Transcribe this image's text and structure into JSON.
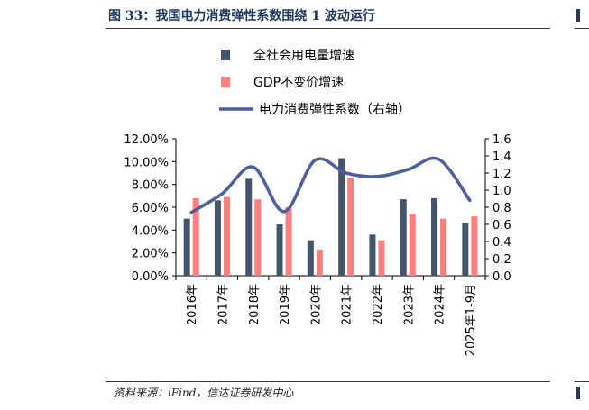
{
  "title": "图 33：我国电力消费弹性系数围绕 1 波动运行",
  "source": "资料来源：iFind，信达证券研发中心",
  "colors": {
    "bar1": "#44546a",
    "bar2": "#ff7f7f",
    "line": "#4e5fa0",
    "title": "#1f3864"
  },
  "chart_data": {
    "type": "bar",
    "categories": [
      "2016年",
      "2017年",
      "2018年",
      "2019年",
      "2020年",
      "2021年",
      "2022年",
      "2023年",
      "2024年",
      "2025年1-9月"
    ],
    "series": [
      {
        "name": "全社会用电量增速",
        "type": "bar",
        "axis": "left",
        "values": [
          5.0,
          6.6,
          8.5,
          4.5,
          3.1,
          10.3,
          3.6,
          6.7,
          6.8,
          4.6
        ]
      },
      {
        "name": "GDP不变价增速",
        "type": "bar",
        "axis": "left",
        "values": [
          6.8,
          6.9,
          6.7,
          6.0,
          2.3,
          8.6,
          3.1,
          5.4,
          5.0,
          5.2
        ]
      },
      {
        "name": "电力消费弹性系数（右轴）",
        "type": "line",
        "axis": "right",
        "values": [
          0.74,
          0.96,
          1.27,
          0.75,
          1.35,
          1.2,
          1.16,
          1.24,
          1.36,
          0.88
        ]
      }
    ],
    "y_left": {
      "min": 0,
      "max": 12,
      "step": 2,
      "ticks": [
        "0.00%",
        "2.00%",
        "4.00%",
        "6.00%",
        "8.00%",
        "10.00%",
        "12.00%"
      ]
    },
    "y_right": {
      "min": 0,
      "max": 1.6,
      "step": 0.2,
      "ticks": [
        "0.0",
        "0.2",
        "0.4",
        "0.6",
        "0.8",
        "1.0",
        "1.2",
        "1.4",
        "1.6"
      ]
    },
    "legend": "top",
    "grid": false
  }
}
